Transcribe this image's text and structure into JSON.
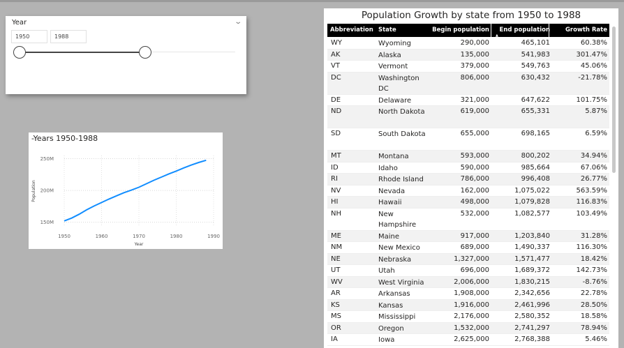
{
  "slicer": {
    "title": "Year",
    "start": "1950",
    "end": "1988"
  },
  "chart": {
    "title": "-Years 1950-1988",
    "chart_data": {
      "type": "line",
      "x": [
        1950,
        1952,
        1954,
        1956,
        1958,
        1960,
        1962,
        1964,
        1966,
        1968,
        1970,
        1972,
        1974,
        1976,
        1978,
        1980,
        1982,
        1984,
        1986,
        1988
      ],
      "series": [
        {
          "values": [
            152.0,
            156.5,
            162.5,
            169.5,
            175.5,
            181.0,
            186.5,
            191.5,
            196.5,
            200.5,
            205.0,
            210.5,
            216.0,
            221.0,
            226.0,
            230.5,
            235.5,
            240.0,
            244.0,
            247.5
          ]
        }
      ],
      "xlabel": "Year",
      "ylabel": "Population",
      "x_ticks": [
        1950,
        1960,
        1970,
        1980,
        1990
      ],
      "y_ticks": [
        150,
        200,
        250
      ],
      "y_tick_labels": [
        "150M",
        "200M",
        "250M"
      ],
      "xlim": [
        1950,
        1990
      ],
      "ylim": [
        143,
        255
      ],
      "grid": true,
      "line_color": "#118dff"
    }
  },
  "table": {
    "title": "Population Growth by state from 1950 to 1988",
    "columns": [
      "Abbreviation",
      "State",
      "Begin population",
      "End population",
      "Growth Rate"
    ],
    "rows": [
      [
        "WY",
        "Wyoming",
        "290,000",
        "465,101",
        "60.38%"
      ],
      [
        "AK",
        "Alaska",
        "135,000",
        "541,983",
        "301.47%"
      ],
      [
        "VT",
        "Vermont",
        "379,000",
        "549,763",
        "45.06%"
      ],
      [
        "DC",
        "Washington DC",
        "806,000",
        "630,432",
        "-21.78%"
      ],
      [
        "DE",
        "Delaware",
        "321,000",
        "647,622",
        "101.75%"
      ],
      [
        "ND",
        "North Dakota",
        "619,000",
        "655,331",
        "5.87%"
      ],
      [
        "SD",
        "South Dakota",
        "655,000",
        "698,165",
        "6.59%"
      ],
      [
        "MT",
        "Montana",
        "593,000",
        "800,202",
        "34.94%"
      ],
      [
        "ID",
        "Idaho",
        "590,000",
        "985,664",
        "67.06%"
      ],
      [
        "RI",
        "Rhode Island",
        "786,000",
        "996,408",
        "26.77%"
      ],
      [
        "NV",
        "Nevada",
        "162,000",
        "1,075,022",
        "563.59%"
      ],
      [
        "HI",
        "Hawaii",
        "498,000",
        "1,079,828",
        "116.83%"
      ],
      [
        "NH",
        "New Hampshire",
        "532,000",
        "1,082,577",
        "103.49%"
      ],
      [
        "ME",
        "Maine",
        "917,000",
        "1,203,840",
        "31.28%"
      ],
      [
        "NM",
        "New Mexico",
        "689,000",
        "1,490,337",
        "116.30%"
      ],
      [
        "NE",
        "Nebraska",
        "1,327,000",
        "1,571,477",
        "18.42%"
      ],
      [
        "UT",
        "Utah",
        "696,000",
        "1,689,372",
        "142.73%"
      ],
      [
        "WV",
        "West Virginia",
        "2,006,000",
        "1,830,215",
        "-8.76%"
      ],
      [
        "AR",
        "Arkansas",
        "1,908,000",
        "2,342,656",
        "22.78%"
      ],
      [
        "KS",
        "Kansas",
        "1,916,000",
        "2,461,996",
        "28.50%"
      ],
      [
        "MS",
        "Mississippi",
        "2,176,000",
        "2,580,352",
        "18.58%"
      ],
      [
        "OR",
        "Oregon",
        "1,532,000",
        "2,741,297",
        "78.94%"
      ],
      [
        "IA",
        "Iowa",
        "2,625,000",
        "2,768,388",
        "5.46%"
      ]
    ]
  }
}
